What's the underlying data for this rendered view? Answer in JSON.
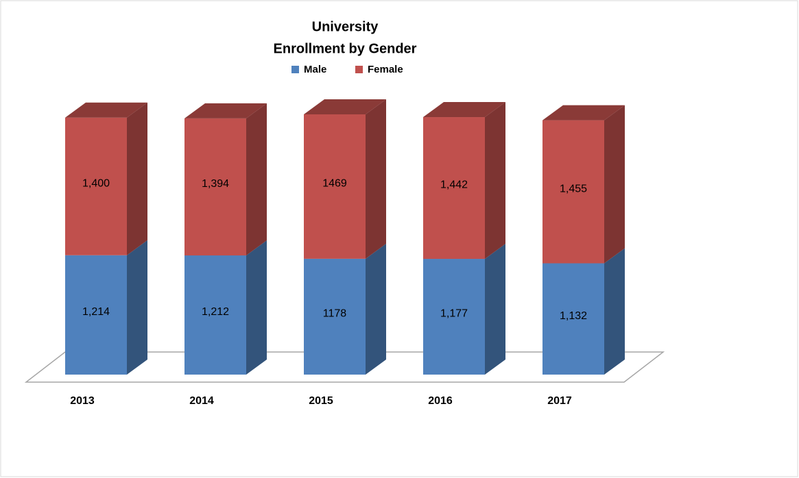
{
  "chart_data": {
    "type": "bar3d_stacked",
    "title": "University",
    "subtitle": "Enrollment by Gender",
    "categories": [
      "2013",
      "2014",
      "2015",
      "2016",
      "2017"
    ],
    "series": [
      {
        "name": "Male",
        "color": "#4f81bd",
        "values": [
          1214,
          1212,
          1178,
          1177,
          1132
        ],
        "value_labels": [
          "1,214",
          "1,212",
          "1178",
          "1,177",
          "1,132"
        ]
      },
      {
        "name": "Female",
        "color": "#c0504d",
        "values": [
          1400,
          1394,
          1469,
          1442,
          1455
        ],
        "value_labels": [
          "1,400",
          "1,394",
          "1469",
          "1,442",
          "1,455"
        ]
      }
    ],
    "legend": "top"
  }
}
